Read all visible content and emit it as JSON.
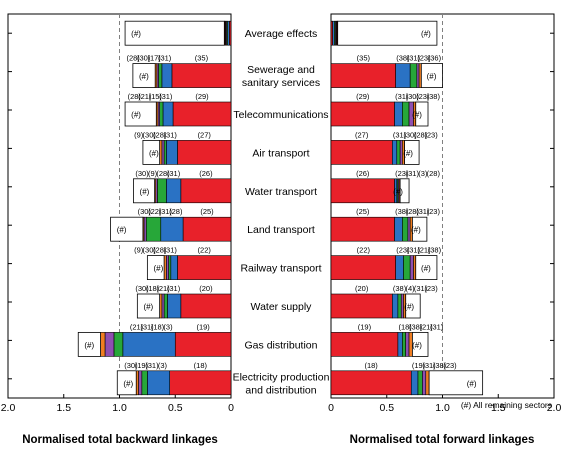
{
  "chart_data": {
    "type": "bar",
    "title": "",
    "orientation": "horizontal",
    "stacked": true,
    "rows": [
      "Average effects",
      "Sewerage and\nsanitary services",
      "Telecommunications",
      "Air transport",
      "Water transport",
      "Land transport",
      "Railway transport",
      "Water supply",
      "Gas distribution",
      "Electricity production\nand distribution"
    ],
    "colors": {
      "primary": "#e8212a",
      "secondary": "#2a72c4",
      "third": "#27a739",
      "fourth": "#8f4fb1",
      "fifth": "#f07e22",
      "rest": "#ffffff",
      "grid": "#808080"
    },
    "remaining_label": "(#)",
    "legend_note": "(#) All remaining sectors",
    "backward": {
      "xlabel": "Normalised total backward linkages",
      "xlim": [
        0,
        2.0
      ],
      "reversed": true,
      "ticks": [
        "2.0",
        "1.5",
        "1.0",
        "0.5",
        "0"
      ],
      "reference_line": 1.0,
      "bars": [
        {
          "labels": [],
          "segments": [
            0.015,
            0.015,
            0.01,
            0.008,
            0.006,
            0.006
          ],
          "rest": 0.89
        },
        {
          "labels": [
            "(35)",
            "(31)",
            "(17)",
            "(30)",
            "(28)"
          ],
          "segments": [
            0.53,
            0.09,
            0.03,
            0.015,
            0.015
          ],
          "rest": 0.2
        },
        {
          "labels": [
            "(29)",
            "(31)",
            "(15)",
            "(21)",
            "(28)"
          ],
          "segments": [
            0.52,
            0.09,
            0.03,
            0.015,
            0.015
          ],
          "rest": 0.28
        },
        {
          "labels": [
            "(27)",
            "(31)",
            "(28)",
            "(30)",
            "(9)"
          ],
          "segments": [
            0.48,
            0.1,
            0.02,
            0.02,
            0.02
          ],
          "rest": 0.15
        },
        {
          "labels": [
            "(26)",
            "(31)",
            "(28)",
            "(9)",
            "(30)"
          ],
          "segments": [
            0.45,
            0.13,
            0.08,
            0.015,
            0.01
          ],
          "rest": 0.19
        },
        {
          "labels": [
            "(25)",
            "(28)",
            "(31)",
            "(22)",
            "(30)"
          ],
          "segments": [
            0.43,
            0.2,
            0.13,
            0.02,
            0.01
          ],
          "rest": 0.29
        },
        {
          "labels": [
            "(22)",
            "(31)",
            "(28)",
            "(30)",
            "(9)"
          ],
          "segments": [
            0.48,
            0.06,
            0.02,
            0.02,
            0.02
          ],
          "rest": 0.15
        },
        {
          "labels": [
            "(20)",
            "(31)",
            "(21)",
            "(18)",
            "(30)"
          ],
          "segments": [
            0.45,
            0.12,
            0.03,
            0.02,
            0.02
          ],
          "rest": 0.2
        },
        {
          "labels": [
            "(19)",
            "(3)",
            "(18)",
            "(31)",
            "(21)"
          ],
          "segments": [
            0.5,
            0.47,
            0.08,
            0.08,
            0.04
          ],
          "rest": 0.2
        },
        {
          "labels": [
            "(18)",
            "(3)",
            "(31)",
            "(19)",
            "(30)"
          ],
          "segments": [
            0.55,
            0.2,
            0.05,
            0.03,
            0.02
          ],
          "rest": 0.17
        }
      ]
    },
    "forward": {
      "xlabel": "Normalised total forward linkages",
      "xlim": [
        0,
        2.0
      ],
      "reversed": false,
      "ticks": [
        "0",
        "0.5",
        "1.0",
        "1.5",
        "2.0"
      ],
      "reference_line": 1.0,
      "bars": [
        {
          "labels": [],
          "segments": [
            0.015,
            0.015,
            0.01,
            0.008,
            0.006,
            0.006
          ],
          "rest": 0.89
        },
        {
          "labels": [
            "(35)",
            "(38)",
            "(31)",
            "(23)",
            "(36)"
          ],
          "segments": [
            0.58,
            0.13,
            0.06,
            0.02,
            0.02
          ],
          "rest": 0.19
        },
        {
          "labels": [
            "(29)",
            "(31)",
            "(30)",
            "(23)",
            "(38)"
          ],
          "segments": [
            0.57,
            0.07,
            0.06,
            0.04,
            0.02
          ],
          "rest": 0.11
        },
        {
          "labels": [
            "(27)",
            "(31)",
            "(30)",
            "(28)",
            "(23)"
          ],
          "segments": [
            0.55,
            0.04,
            0.03,
            0.02,
            0.02
          ],
          "rest": 0.13
        },
        {
          "labels": [
            "(26)",
            "(23)",
            "(31)",
            "(3)",
            "(28)"
          ],
          "segments": [
            0.57,
            0.02,
            0.01,
            0.01,
            0.01
          ],
          "rest": 0.08
        },
        {
          "labels": [
            "(25)",
            "(38)",
            "(28)",
            "(31)",
            "(23)"
          ],
          "segments": [
            0.57,
            0.07,
            0.05,
            0.02,
            0.02
          ],
          "rest": 0.13
        },
        {
          "labels": [
            "(22)",
            "(23)",
            "(31)",
            "(21)",
            "(38)"
          ],
          "segments": [
            0.58,
            0.07,
            0.06,
            0.03,
            0.02
          ],
          "rest": 0.19
        },
        {
          "labels": [
            "(20)",
            "(38)",
            "(4)",
            "(31)",
            "(23)"
          ],
          "segments": [
            0.55,
            0.05,
            0.03,
            0.02,
            0.02
          ],
          "rest": 0.13
        },
        {
          "labels": [
            "(19)",
            "(18)",
            "(38)",
            "(21)",
            "(31)"
          ],
          "segments": [
            0.6,
            0.04,
            0.03,
            0.03,
            0.03
          ],
          "rest": 0.14
        },
        {
          "labels": [
            "(18)",
            "(19)",
            "(31)",
            "(38)",
            "(23)"
          ],
          "segments": [
            0.72,
            0.06,
            0.04,
            0.03,
            0.03
          ],
          "rest": 0.48
        }
      ]
    }
  }
}
